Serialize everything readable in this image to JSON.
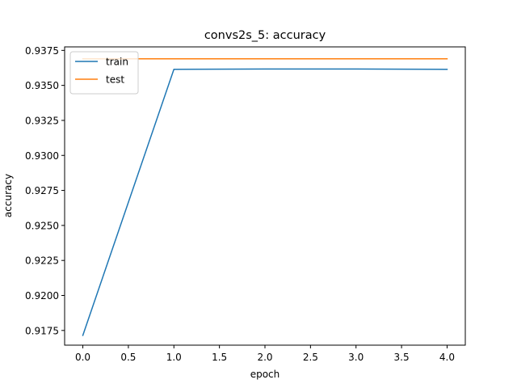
{
  "chart_data": {
    "type": "line",
    "title": "convs2s_5: accuracy",
    "xlabel": "epoch",
    "ylabel": "accuracy",
    "xlim": [
      -0.2,
      4.2
    ],
    "ylim": [
      0.91645,
      0.93775
    ],
    "xticks": [
      0.0,
      0.5,
      1.0,
      1.5,
      2.0,
      2.5,
      3.0,
      3.5,
      4.0
    ],
    "xtick_labels": [
      "0.0",
      "0.5",
      "1.0",
      "1.5",
      "2.0",
      "2.5",
      "3.0",
      "3.5",
      "4.0"
    ],
    "yticks": [
      0.9175,
      0.92,
      0.9225,
      0.925,
      0.9275,
      0.93,
      0.9325,
      0.935,
      0.9375
    ],
    "ytick_labels": [
      "0.9175",
      "0.9200",
      "0.9225",
      "0.9250",
      "0.9275",
      "0.9300",
      "0.9325",
      "0.9350",
      "0.9375"
    ],
    "grid": false,
    "legend_position": "top-left",
    "x": [
      0,
      1,
      2,
      3,
      4
    ],
    "series": [
      {
        "name": "train",
        "color": "#1f77b4",
        "values": [
          0.91715,
          0.93615,
          0.93617,
          0.93617,
          0.93615
        ]
      },
      {
        "name": "test",
        "color": "#ff7f0e",
        "values": [
          0.9369,
          0.9369,
          0.9369,
          0.9369,
          0.9369
        ]
      }
    ]
  }
}
